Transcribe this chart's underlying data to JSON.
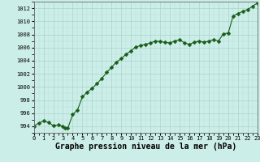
{
  "x": [
    0,
    0.5,
    1,
    1.5,
    2,
    2.5,
    3,
    3.25,
    3.5,
    4,
    4.5,
    5,
    5.5,
    6,
    6.5,
    7,
    7.5,
    8,
    8.5,
    9,
    9.5,
    10,
    10.5,
    11,
    11.5,
    12,
    12.5,
    13,
    13.5,
    14,
    14.5,
    15,
    15.5,
    16,
    16.5,
    17,
    17.5,
    18,
    18.5,
    19,
    19.5,
    20,
    20.5,
    21,
    21.5,
    22,
    22.5,
    23
  ],
  "y": [
    994.0,
    994.5,
    994.8,
    994.6,
    994.1,
    994.2,
    994.0,
    993.8,
    993.7,
    995.8,
    996.5,
    998.5,
    999.2,
    999.8,
    1000.5,
    1001.3,
    1002.2,
    1003.0,
    1003.8,
    1004.3,
    1005.0,
    1005.5,
    1006.1,
    1006.3,
    1006.5,
    1006.7,
    1007.0,
    1006.9,
    1006.8,
    1006.7,
    1007.0,
    1007.2,
    1006.7,
    1006.5,
    1006.8,
    1007.0,
    1006.8,
    1007.0,
    1007.2,
    1007.0,
    1008.1,
    1008.2,
    1010.8,
    1011.2,
    1011.5,
    1011.8,
    1012.3,
    1012.8
  ],
  "line_color": "#1a5c1a",
  "marker_color": "#1a5c1a",
  "bg_color": "#cceee8",
  "grid_major_color": "#aad4cc",
  "grid_minor_color": "#bbdddd",
  "xlabel": "Graphe pression niveau de la mer (hPa)",
  "xlabel_fontsize": 7,
  "ylim": [
    993,
    1013
  ],
  "xlim": [
    0,
    23
  ],
  "yticks": [
    994,
    996,
    998,
    1000,
    1002,
    1004,
    1006,
    1008,
    1010,
    1012
  ],
  "xticks": [
    0,
    1,
    2,
    3,
    4,
    5,
    6,
    7,
    8,
    9,
    10,
    11,
    12,
    13,
    14,
    15,
    16,
    17,
    18,
    19,
    20,
    21,
    22,
    23
  ],
  "tick_fontsize": 5,
  "marker_size": 2.5,
  "line_width": 0.8
}
